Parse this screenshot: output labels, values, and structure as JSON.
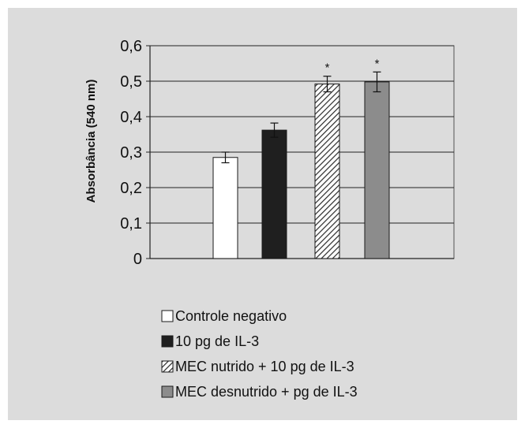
{
  "chart_data": {
    "type": "bar",
    "title": "",
    "xlabel": "",
    "ylabel": "Absorbância (540 nm)",
    "ylim": [
      0,
      0.6
    ],
    "yticks": [
      0,
      0.1,
      0.2,
      0.3,
      0.4,
      0.5,
      0.6
    ],
    "ytick_labels": [
      "0",
      "0,1",
      "0,2",
      "0,3",
      "0,4",
      "0,5",
      "0,6"
    ],
    "grid": true,
    "legend_position": "bottom",
    "series": [
      {
        "name": "Controle negativo",
        "value": 0.285,
        "error": 0.015,
        "fill": "white",
        "annotation": ""
      },
      {
        "name": "10 pg de IL-3",
        "value": 0.362,
        "error": 0.02,
        "fill": "black",
        "annotation": ""
      },
      {
        "name": "MEC nutrido + 10 pg de IL-3",
        "value": 0.492,
        "error": 0.022,
        "fill": "hatched",
        "annotation": "*"
      },
      {
        "name": "MEC desnutrido + pg de IL-3",
        "value": 0.498,
        "error": 0.028,
        "fill": "gray",
        "annotation": "*"
      }
    ]
  },
  "colors": {
    "panel": "#dcdcdc",
    "white_bar": "#ffffff",
    "black_bar": "#1f1f1f",
    "gray_bar": "#8c8c8c",
    "hatch": "#2a2a2a",
    "gridline": "#222222"
  }
}
